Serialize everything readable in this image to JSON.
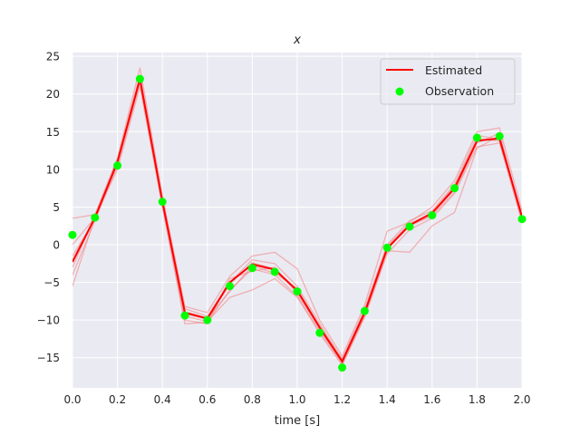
{
  "chart_data": {
    "type": "line",
    "title": "x",
    "xlabel": "time [s]",
    "ylabel": "",
    "xlim": [
      0.0,
      2.0
    ],
    "ylim": [
      -19,
      25.5
    ],
    "xticks": [
      0.0,
      0.2,
      0.4,
      0.6,
      0.8,
      1.0,
      1.2,
      1.4,
      1.6,
      1.8,
      2.0
    ],
    "xtick_labels": [
      "0.0",
      "0.2",
      "0.4",
      "0.6",
      "0.8",
      "1.0",
      "1.2",
      "1.4",
      "1.6",
      "1.8",
      "2.0"
    ],
    "yticks": [
      -15,
      -10,
      -5,
      0,
      5,
      10,
      15,
      20,
      25
    ],
    "ytick_labels": [
      "−15",
      "−10",
      "−5",
      "0",
      "5",
      "10",
      "15",
      "20",
      "25"
    ],
    "grid": true,
    "legend_position": "top-right",
    "colors": {
      "background": "#eaeaf2",
      "grid": "#ffffff",
      "estimated": "#ff0000",
      "ensemble": "#f08080",
      "observation": "#00ff00"
    },
    "series": [
      {
        "name": "Estimated",
        "kind": "line",
        "x": [
          0.0,
          0.1,
          0.2,
          0.3,
          0.4,
          0.5,
          0.6,
          0.7,
          0.8,
          0.9,
          1.0,
          1.1,
          1.2,
          1.3,
          1.4,
          1.5,
          1.6,
          1.7,
          1.8,
          1.9,
          2.0
        ],
        "y": [
          -2.3,
          3.6,
          11.0,
          22.0,
          5.7,
          -9.0,
          -9.8,
          -5.0,
          -2.6,
          -3.3,
          -6.1,
          -11.0,
          -15.5,
          -9.0,
          -0.5,
          2.6,
          4.2,
          7.5,
          13.8,
          14.1,
          3.7
        ]
      },
      {
        "name": "Observation",
        "kind": "scatter",
        "x": [
          0.0,
          0.1,
          0.2,
          0.3,
          0.4,
          0.5,
          0.6,
          0.7,
          0.8,
          0.9,
          1.0,
          1.1,
          1.2,
          1.3,
          1.4,
          1.5,
          1.6,
          1.7,
          1.8,
          1.9,
          2.0
        ],
        "y": [
          1.3,
          3.6,
          10.5,
          22.0,
          5.7,
          -9.4,
          -10.0,
          -5.5,
          -3.1,
          -3.6,
          -6.2,
          -11.7,
          -16.3,
          -8.8,
          -0.4,
          2.4,
          3.9,
          7.5,
          14.2,
          14.4,
          3.4
        ]
      }
    ],
    "ensemble": [
      [
        -5.5,
        3.7,
        10.0,
        21.0,
        5.0,
        -10.5,
        -10.3,
        -6.0,
        -3.2,
        -4.0,
        -6.8,
        -11.8,
        -16.0,
        -9.6,
        -1.2,
        2.0,
        3.5,
        6.8,
        13.0,
        13.5,
        3.0
      ],
      [
        3.5,
        4.0,
        11.5,
        23.5,
        6.5,
        -8.2,
        -9.0,
        -4.2,
        -1.5,
        -1.0,
        -3.2,
        -10.0,
        -14.8,
        -8.0,
        1.8,
        3.0,
        5.0,
        8.5,
        15.0,
        15.5,
        4.5
      ],
      [
        -4.0,
        3.2,
        10.5,
        21.5,
        5.3,
        -9.5,
        -10.2,
        -7.0,
        -6.0,
        -4.5,
        -7.0,
        -11.5,
        -15.8,
        -9.5,
        -0.8,
        -1.0,
        2.5,
        4.3,
        12.8,
        14.5,
        3.2
      ],
      [
        0.0,
        3.6,
        11.2,
        22.5,
        6.0,
        -8.5,
        -9.5,
        -5.0,
        -2.0,
        -2.5,
        -5.5,
        -10.5,
        -15.2,
        -8.5,
        0.0,
        3.2,
        4.5,
        8.0,
        14.5,
        14.0,
        4.0
      ],
      [
        -1.5,
        3.4,
        10.8,
        21.8,
        5.6,
        -10.0,
        -10.5,
        -4.5,
        -3.5,
        -3.0,
        -6.5,
        -11.2,
        -15.6,
        -9.2,
        -0.5,
        2.5,
        3.8,
        7.0,
        13.5,
        14.8,
        3.6
      ],
      [
        -3.0,
        3.8,
        11.0,
        22.2,
        5.8,
        -9.0,
        -9.8,
        -6.2,
        -2.8,
        -3.8,
        -5.8,
        -11.0,
        -15.4,
        -8.8,
        -0.2,
        2.8,
        4.2,
        7.8,
        14.0,
        13.8,
        3.8
      ],
      [
        -2.0,
        3.5,
        10.9,
        22.1,
        5.7,
        -9.2,
        -9.9,
        -5.2,
        -2.4,
        -3.2,
        -6.0,
        -10.8,
        -15.3,
        -9.0,
        -0.6,
        2.6,
        4.0,
        7.4,
        13.7,
        14.2,
        3.5
      ]
    ]
  },
  "legend": {
    "estimated_label": "Estimated",
    "observation_label": "Observation"
  }
}
